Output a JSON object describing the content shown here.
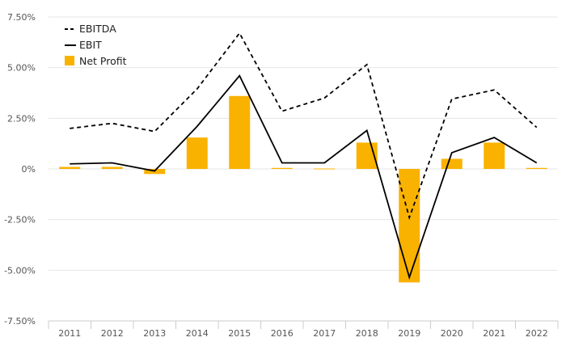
{
  "chart_data": {
    "type": "bar",
    "categories": [
      "2011",
      "2012",
      "2013",
      "2014",
      "2015",
      "2016",
      "2017",
      "2018",
      "2019",
      "2020",
      "2021",
      "2022"
    ],
    "series": [
      {
        "name": "EBITDA",
        "kind": "line",
        "style": "dashed",
        "values": [
          2.0,
          2.25,
          1.85,
          3.95,
          6.7,
          2.85,
          3.5,
          5.15,
          -2.4,
          3.45,
          3.9,
          2.05
        ]
      },
      {
        "name": "EBIT",
        "kind": "line",
        "style": "solid",
        "values": [
          0.25,
          0.3,
          -0.1,
          2.1,
          4.6,
          0.3,
          0.3,
          1.9,
          -5.35,
          0.8,
          1.55,
          0.3
        ]
      },
      {
        "name": "Net Profit",
        "kind": "bar",
        "values": [
          0.1,
          0.1,
          -0.25,
          1.55,
          3.6,
          0.05,
          0.02,
          1.3,
          -5.6,
          0.5,
          1.3,
          0.05
        ]
      }
    ],
    "yticks": [
      7.5,
      5.0,
      2.5,
      0,
      -2.5,
      -5.0,
      -7.5
    ],
    "ytick_labels": [
      "7.50%",
      "5.00%",
      "2.50%",
      "0%",
      "-2.50%",
      "-5.00%",
      "-7.50%"
    ],
    "ylim": [
      -7.5,
      7.5
    ],
    "grid": true,
    "legend_position": "top-left",
    "colors": {
      "bar": "#f9b200",
      "line": "#000000",
      "grid": "#e6e6e6",
      "axis": "#cccccc"
    }
  }
}
